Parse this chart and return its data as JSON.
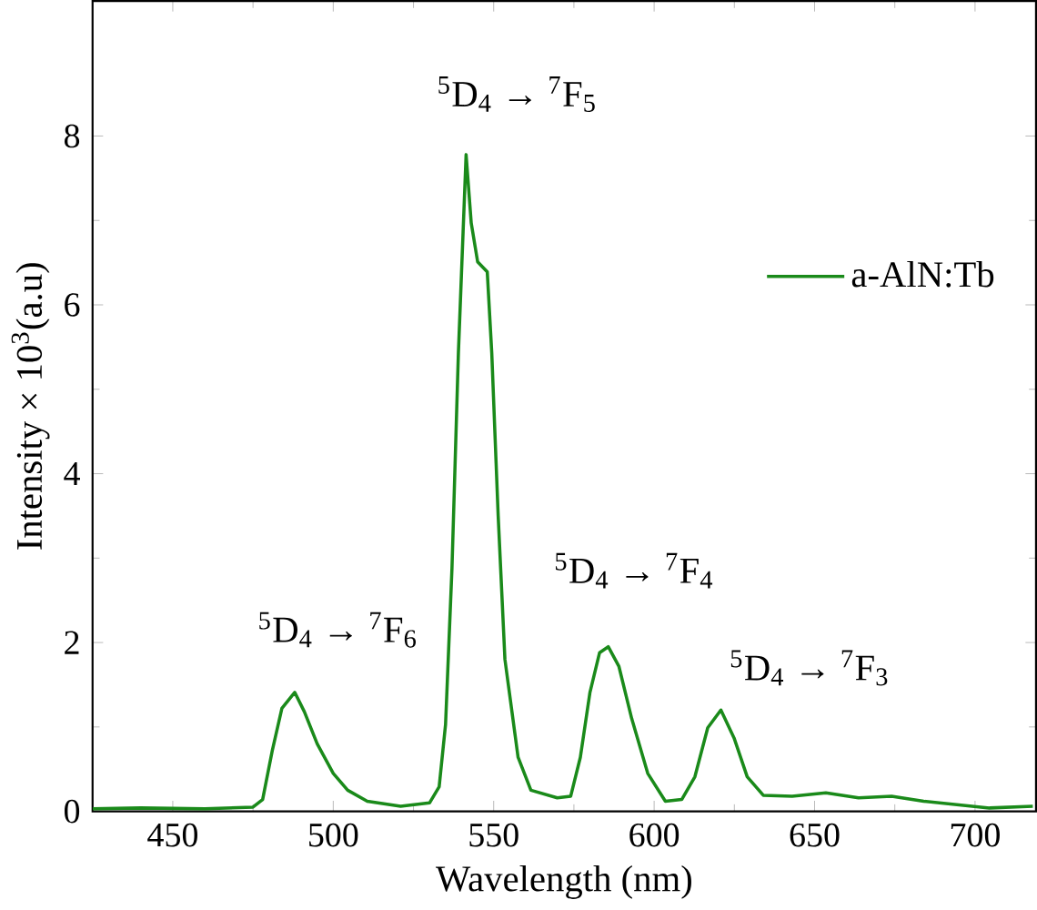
{
  "chart_data": {
    "type": "line",
    "xlabel": "Wavelength (nm)",
    "ylabel": "Intensity × 10$^{3}$(a.u)",
    "xlim": [
      425,
      719
    ],
    "xticks": [
      450,
      500,
      550,
      600,
      650,
      700
    ],
    "ylim": [
      0,
      9.6
    ],
    "yticks": [
      0,
      2,
      4,
      6,
      8
    ],
    "legend": "right",
    "grid": false,
    "annotations": [
      "$^{5}$D$_{4}$ → $^{7}$F$_{6}$",
      "$^{5}$D$_{4}$ → $^{7}$F$_{5}$",
      "$^{5}$D$_{4}$ → $^{7}$F$_{4}$",
      "$^{5}$D$_{4}$ → $^{7}$F$_{3}$"
    ],
    "series": [
      {
        "name": "a-AlN:Tb",
        "color": "#1a8a1a",
        "x": [
          425,
          440,
          460,
          475,
          478,
          481,
          484,
          488,
          491,
          495,
          500,
          504.5,
          510.6,
          521,
          530,
          533,
          535,
          537,
          539,
          541.4,
          543,
          545,
          548,
          549.4,
          551.4,
          553.5,
          557.6,
          561.6,
          569.8,
          574,
          577,
          580,
          583,
          585.7,
          589,
          593,
          598,
          603.5,
          608.6,
          612.7,
          616.7,
          620.8,
          624.9,
          629,
          634,
          643,
          653.5,
          663.7,
          674,
          684,
          704.5,
          718
        ],
        "values": [
          0.03,
          0.04,
          0.03,
          0.05,
          0.14,
          0.72,
          1.22,
          1.41,
          1.18,
          0.8,
          0.45,
          0.25,
          0.12,
          0.06,
          0.1,
          0.29,
          1.03,
          2.88,
          5.43,
          7.78,
          6.97,
          6.51,
          6.39,
          5.43,
          3.5,
          1.8,
          0.64,
          0.25,
          0.16,
          0.18,
          0.64,
          1.41,
          1.88,
          1.95,
          1.72,
          1.1,
          0.45,
          0.12,
          0.14,
          0.41,
          0.99,
          1.2,
          0.87,
          0.41,
          0.19,
          0.18,
          0.22,
          0.16,
          0.18,
          0.12,
          0.04,
          0.06
        ]
      }
    ]
  }
}
